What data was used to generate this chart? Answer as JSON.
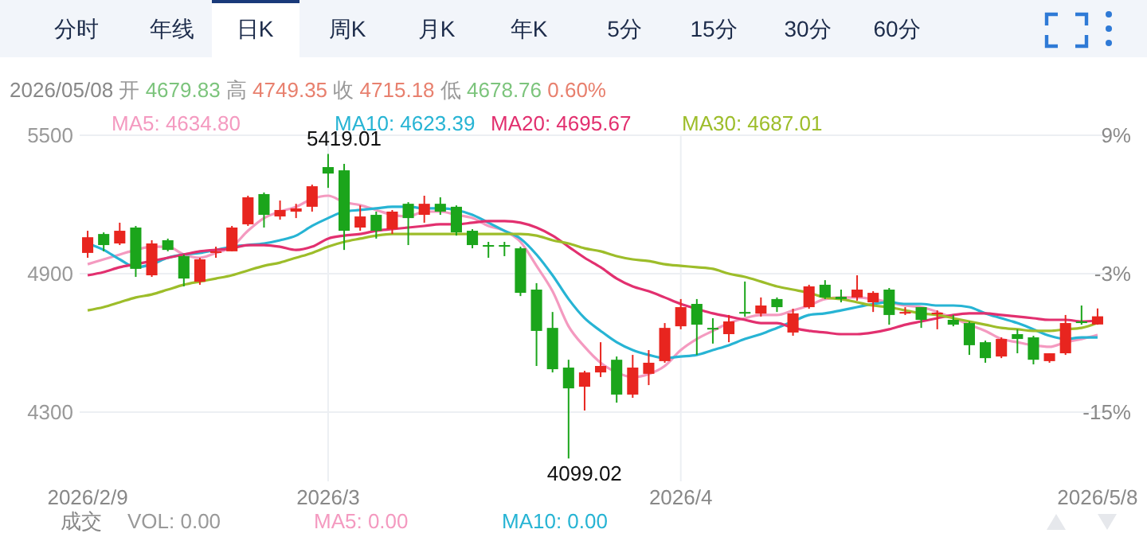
{
  "chart_data": {
    "type": "candlestick",
    "title": "2026/05/08 开 4679.83 高 4749.35 收 4715.18 低 4678.76 0.60%",
    "categories": [
      "2026/2/9",
      null,
      null,
      null,
      null,
      null,
      null,
      null,
      null,
      null,
      null,
      null,
      null,
      null,
      null,
      "2026/3",
      null,
      null,
      null,
      null,
      null,
      null,
      null,
      null,
      null,
      null,
      null,
      null,
      null,
      null,
      null,
      null,
      null,
      null,
      null,
      null,
      null,
      "2026/4",
      null,
      null,
      null,
      null,
      null,
      null,
      null,
      null,
      null,
      null,
      null,
      null,
      null,
      null,
      null,
      null,
      null,
      null,
      null,
      null,
      null,
      null,
      null,
      null,
      null,
      "2026/5/8"
    ],
    "ylim": [
      4000,
      5500
    ],
    "yticks": [
      4300,
      4900,
      5500
    ],
    "y2lim": [
      -21,
      9
    ],
    "y2ticks": [
      {
        "value": -15,
        "label": "-15%"
      },
      {
        "value": -3,
        "label": "-3%"
      },
      {
        "value": 9,
        "label": "9%"
      }
    ],
    "grid": true,
    "legend": "top",
    "annotations": [
      "分时",
      "年线",
      "日K",
      "周K",
      "月K",
      "年K",
      "5分",
      "15分",
      "30分",
      "60分",
      "成交",
      "VOL: 0.00",
      "MA5: 0.00",
      "MA10: 0.00",
      {
        "text": "5419.01",
        "x": "2026/3",
        "y": 5419.01
      },
      "4099.02"
    ],
    "series": [
      {
        "ohlc": [
          [
            4990,
            5086,
            4969,
            5058
          ],
          [
            5072,
            5079,
            4997,
            5024
          ],
          [
            5031,
            5121,
            5024,
            5086
          ],
          [
            5100,
            5107,
            4886,
            4921
          ],
          [
            4893,
            5045,
            4886,
            5031
          ],
          [
            5045,
            5052,
            4997,
            5003
          ],
          [
            4976,
            4983,
            4845,
            4879
          ],
          [
            4865,
            4969,
            4852,
            4962
          ],
          [
            4990,
            5017,
            4969,
            4997
          ],
          [
            4997,
            5107,
            4997,
            5100
          ],
          [
            5114,
            5238,
            5107,
            5231
          ],
          [
            5245,
            5252,
            5100,
            5155
          ],
          [
            5148,
            5217,
            5134,
            5176
          ],
          [
            5169,
            5203,
            5141,
            5183
          ],
          [
            5190,
            5286,
            5169,
            5279
          ],
          [
            5362,
            5419.01,
            5272,
            5334
          ],
          [
            5348,
            5376,
            5003,
            5086
          ],
          [
            5100,
            5196,
            5086,
            5148
          ],
          [
            5155,
            5169,
            5052,
            5086
          ],
          [
            5093,
            5176,
            5072,
            5169
          ],
          [
            5203,
            5210,
            5024,
            5141
          ],
          [
            5155,
            5238,
            5121,
            5203
          ],
          [
            5203,
            5231,
            5155,
            5169
          ],
          [
            5190,
            5196,
            5065,
            5079
          ],
          [
            5086,
            5093,
            5010,
            5024
          ],
          [
            5024,
            5038,
            4969,
            5017
          ],
          [
            5024,
            5038,
            4976,
            5017
          ],
          [
            5010,
            5017,
            4803,
            4817
          ],
          [
            4831,
            4859,
            4500,
            4652
          ],
          [
            4665,
            4734,
            4472,
            4486
          ],
          [
            4493,
            4527,
            4099.02,
            4403
          ],
          [
            4410,
            4479,
            4307,
            4472
          ],
          [
            4472,
            4603,
            4452,
            4500
          ],
          [
            4527,
            4541,
            4341,
            4376
          ],
          [
            4376,
            4548,
            4362,
            4493
          ],
          [
            4466,
            4569,
            4417,
            4514
          ],
          [
            4521,
            4686,
            4514,
            4665
          ],
          [
            4672,
            4790,
            4659,
            4755
          ],
          [
            4769,
            4790,
            4548,
            4679
          ],
          [
            4665,
            4707,
            4597,
            4658
          ],
          [
            4638,
            4721,
            4603,
            4693
          ],
          [
            4734,
            4866,
            4714,
            4727
          ],
          [
            4727,
            4797,
            4714,
            4762
          ],
          [
            4790,
            4797,
            4734,
            4755
          ],
          [
            4645,
            4748,
            4631,
            4728
          ],
          [
            4755,
            4852,
            4748,
            4845
          ],
          [
            4852,
            4872,
            4790,
            4797
          ],
          [
            4800,
            4831,
            4776,
            4790
          ],
          [
            4797,
            4893,
            4783,
            4831
          ],
          [
            4776,
            4824,
            4734,
            4817
          ],
          [
            4831,
            4838,
            4679,
            4721
          ],
          [
            4728,
            4755,
            4721,
            4734
          ],
          [
            4755,
            4755,
            4665,
            4700
          ],
          [
            4724,
            4741,
            4659,
            4731
          ],
          [
            4700,
            4721,
            4672,
            4679
          ],
          [
            4686,
            4693,
            4548,
            4590
          ],
          [
            4603,
            4610,
            4514,
            4534
          ],
          [
            4541,
            4624,
            4534,
            4617
          ],
          [
            4638,
            4659,
            4555,
            4617
          ],
          [
            4624,
            4631,
            4507,
            4527
          ],
          [
            4521,
            4555,
            4514,
            4555
          ],
          [
            4555,
            4721,
            4548,
            4686
          ],
          [
            4693,
            4762,
            4679,
            4686
          ],
          [
            4679.83,
            4749.35,
            4678.76,
            4715.18
          ]
        ],
        "colors": [
          "#e8251f",
          "#1ba51b",
          "#e8251f",
          "#1ba51b",
          "#e8251f",
          "#1ba51b",
          "#1ba51b",
          "#e8251f",
          "#e8251f",
          "#e8251f",
          "#e8251f",
          "#1ba51b",
          "#e8251f",
          "#e8251f",
          "#e8251f",
          "#1ba51b",
          "#1ba51b",
          "#e8251f",
          "#1ba51b",
          "#e8251f",
          "#1ba51b",
          "#e8251f",
          "#1ba51b",
          "#1ba51b",
          "#1ba51b",
          "#1ba51b",
          "#1ba51b",
          "#1ba51b",
          "#1ba51b",
          "#1ba51b",
          "#1ba51b",
          "#e8251f",
          "#e8251f",
          "#1ba51b",
          "#e8251f",
          "#e8251f",
          "#e8251f",
          "#e8251f",
          "#1ba51b",
          "#1ba51b",
          "#e8251f",
          "#1ba51b",
          "#e8251f",
          "#1ba51b",
          "#e8251f",
          "#e8251f",
          "#1ba51b",
          "#1ba51b",
          "#e8251f",
          "#e8251f",
          "#1ba51b",
          "#e8251f",
          "#1ba51b",
          "#e8251f",
          "#1ba51b",
          "#1ba51b",
          "#1ba51b",
          "#e8251f",
          "#1ba51b",
          "#1ba51b",
          "#e8251f",
          "#e8251f",
          "#1ba51b",
          "#e8251f"
        ]
      },
      {
        "type": "line",
        "name": "MA5: 4634.80",
        "color": "#f49ac0",
        "values": [
          4941,
          4962,
          4983,
          5003,
          5017,
          5017,
          4983,
          4969,
          4990,
          5017,
          5086,
          5141,
          5169,
          5190,
          5224,
          5238,
          5210,
          5197,
          5176,
          5155,
          5148,
          5169,
          5169,
          5155,
          5141,
          5107,
          5086,
          5038,
          4934,
          4824,
          4672,
          4583,
          4514,
          4472,
          4452,
          4465,
          4500,
          4569,
          4617,
          4652,
          4686,
          4707,
          4721,
          4721,
          4741,
          4762,
          4790,
          4797,
          4797,
          4790,
          4776,
          4762,
          4755,
          4734,
          4707,
          4679,
          4652,
          4617,
          4603,
          4590,
          4583,
          4603,
          4617,
          4634.8
        ]
      },
      {
        "type": "line",
        "name": "MA10: 4623.39",
        "color": "#27b4d4",
        "values": [
          5031,
          5003,
          4962,
          4928,
          4941,
          4969,
          4983,
          4990,
          5003,
          5017,
          5024,
          5031,
          5045,
          5065,
          5107,
          5141,
          5169,
          5176,
          5183,
          5190,
          5190,
          5183,
          5183,
          5176,
          5155,
          5121,
          5086,
          5052,
          4983,
          4893,
          4790,
          4707,
          4652,
          4603,
          4569,
          4548,
          4534,
          4541,
          4548,
          4569,
          4590,
          4617,
          4638,
          4665,
          4693,
          4721,
          4728,
          4741,
          4755,
          4769,
          4776,
          4769,
          4769,
          4762,
          4762,
          4755,
          4728,
          4707,
          4686,
          4659,
          4631,
          4617,
          4624,
          4623.39
        ]
      },
      {
        "type": "line",
        "name": "MA20: 4695.67",
        "color": "#e2306f",
        "values": [
          4893,
          4907,
          4928,
          4941,
          4955,
          4969,
          4983,
          4997,
          5003,
          5010,
          5024,
          5024,
          5017,
          5003,
          5017,
          5052,
          5065,
          5072,
          5086,
          5093,
          5100,
          5107,
          5114,
          5114,
          5121,
          5128,
          5128,
          5121,
          5100,
          5065,
          5017,
          4969,
          4928,
          4879,
          4845,
          4824,
          4797,
          4769,
          4748,
          4728,
          4714,
          4700,
          4686,
          4686,
          4665,
          4652,
          4645,
          4638,
          4638,
          4645,
          4659,
          4679,
          4693,
          4707,
          4721,
          4728,
          4728,
          4721,
          4714,
          4707,
          4700,
          4700,
          4693,
          4695.67
        ]
      },
      {
        "type": "line",
        "name": "MA30: 4687.01",
        "color": "#9dbd2a",
        "values": [
          4741,
          4755,
          4776,
          4797,
          4810,
          4831,
          4852,
          4866,
          4879,
          4893,
          4914,
          4934,
          4948,
          4969,
          4990,
          5017,
          5038,
          5052,
          5065,
          5072,
          5072,
          5072,
          5072,
          5072,
          5072,
          5072,
          5072,
          5072,
          5065,
          5045,
          5031,
          5010,
          4997,
          4976,
          4962,
          4955,
          4941,
          4934,
          4928,
          4921,
          4900,
          4886,
          4866,
          4845,
          4831,
          4817,
          4797,
          4790,
          4776,
          4762,
          4755,
          4741,
          4728,
          4721,
          4707,
          4693,
          4679,
          4665,
          4659,
          4652,
          4652,
          4659,
          4665,
          4687.01
        ]
      }
    ]
  }
}
